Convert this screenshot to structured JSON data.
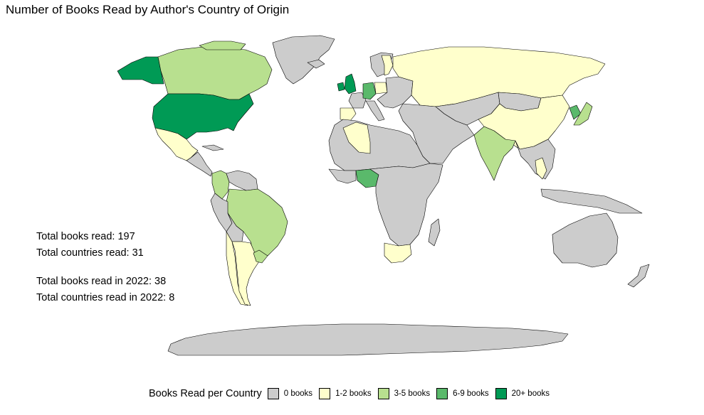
{
  "title": "Number of Books Read by Author's Country of Origin",
  "stats": {
    "total_books": "Total books read: 197",
    "total_countries": "Total countries read: 31",
    "books_2022": "Total books read in 2022: 38",
    "countries_2022": "Total countries read in 2022: 8"
  },
  "legend": {
    "title": "Books Read per Country",
    "items": [
      {
        "label": "0 books",
        "color": "#cccccc"
      },
      {
        "label": "1-2 books",
        "color": "#ffffcc"
      },
      {
        "label": "3-5 books",
        "color": "#b8e08f"
      },
      {
        "label": "6-9 books",
        "color": "#5ab96b"
      },
      {
        "label": "20+ books",
        "color": "#009a55"
      }
    ]
  },
  "regions": [
    {
      "name": "greenland",
      "fill": "#cccccc"
    },
    {
      "name": "alaska",
      "fill": "#009a55"
    },
    {
      "name": "canada",
      "fill": "#b8e08f"
    },
    {
      "name": "united-states",
      "fill": "#009a55"
    },
    {
      "name": "mexico",
      "fill": "#ffffcc"
    },
    {
      "name": "central-america",
      "fill": "#cccccc"
    },
    {
      "name": "colombia",
      "fill": "#b8e08f"
    },
    {
      "name": "venezuela",
      "fill": "#cccccc"
    },
    {
      "name": "brazil",
      "fill": "#b8e08f"
    },
    {
      "name": "peru",
      "fill": "#cccccc"
    },
    {
      "name": "bolivia",
      "fill": "#cccccc"
    },
    {
      "name": "chile",
      "fill": "#ffffcc"
    },
    {
      "name": "argentina",
      "fill": "#ffffcc"
    },
    {
      "name": "uruguay",
      "fill": "#b8e08f"
    },
    {
      "name": "united-kingdom",
      "fill": "#009a55"
    },
    {
      "name": "ireland",
      "fill": "#009a55"
    },
    {
      "name": "iceland",
      "fill": "#cccccc"
    },
    {
      "name": "scandinavia",
      "fill": "#cccccc"
    },
    {
      "name": "sweden",
      "fill": "#ffffcc"
    },
    {
      "name": "france",
      "fill": "#cccccc"
    },
    {
      "name": "spain",
      "fill": "#ffffcc"
    },
    {
      "name": "germany",
      "fill": "#5ab96b"
    },
    {
      "name": "poland",
      "fill": "#ffffcc"
    },
    {
      "name": "italy",
      "fill": "#cccccc"
    },
    {
      "name": "eastern-europe",
      "fill": "#cccccc"
    },
    {
      "name": "russia",
      "fill": "#ffffcc"
    },
    {
      "name": "middle-east",
      "fill": "#cccccc"
    },
    {
      "name": "central-asia",
      "fill": "#cccccc"
    },
    {
      "name": "mongolia",
      "fill": "#cccccc"
    },
    {
      "name": "china",
      "fill": "#ffffcc"
    },
    {
      "name": "india",
      "fill": "#b8e08f"
    },
    {
      "name": "southeast-asia",
      "fill": "#cccccc"
    },
    {
      "name": "thailand",
      "fill": "#ffffcc"
    },
    {
      "name": "japan",
      "fill": "#b8e08f"
    },
    {
      "name": "korea",
      "fill": "#5ab96b"
    },
    {
      "name": "north-africa",
      "fill": "#cccccc"
    },
    {
      "name": "algeria",
      "fill": "#ffffcc"
    },
    {
      "name": "west-africa",
      "fill": "#cccccc"
    },
    {
      "name": "nigeria",
      "fill": "#5ab96b"
    },
    {
      "name": "central-africa",
      "fill": "#cccccc"
    },
    {
      "name": "south-africa",
      "fill": "#ffffcc"
    },
    {
      "name": "madagascar",
      "fill": "#cccccc"
    },
    {
      "name": "indonesia",
      "fill": "#cccccc"
    },
    {
      "name": "australia",
      "fill": "#cccccc"
    },
    {
      "name": "new-zealand",
      "fill": "#cccccc"
    },
    {
      "name": "antarctica",
      "fill": "#cccccc"
    }
  ]
}
